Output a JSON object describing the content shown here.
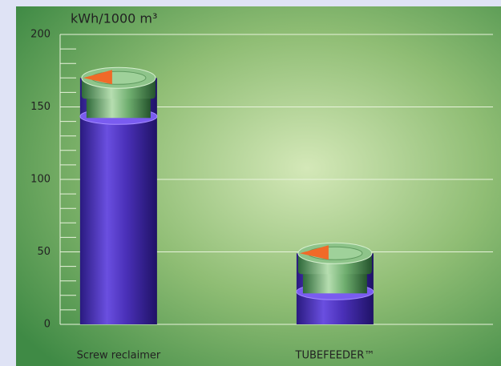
{
  "chart_data": {
    "type": "bar",
    "title": "kWh/1000 m³",
    "categories": [
      "Screw reclaimer",
      "TUBEFEEDER™"
    ],
    "values": [
      170,
      49
    ],
    "color": "#4a2fb0",
    "ylim": [
      0,
      200
    ],
    "yticks": [
      0,
      50,
      100,
      150,
      200
    ],
    "minor_yticks": [
      10,
      20,
      30,
      40,
      60,
      70,
      80,
      90,
      110,
      120,
      130,
      140,
      160,
      170,
      180,
      190
    ],
    "grid": true
  }
}
